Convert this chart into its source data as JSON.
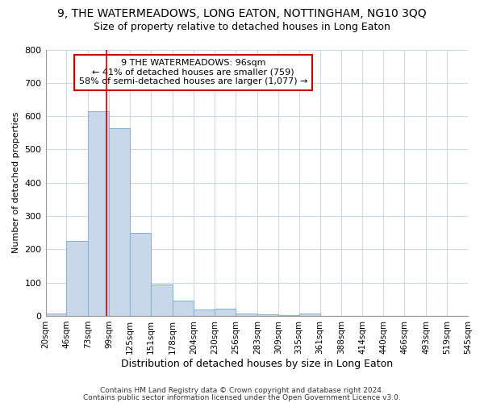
{
  "title": "9, THE WATERMEADOWS, LONG EATON, NOTTINGHAM, NG10 3QQ",
  "subtitle": "Size of property relative to detached houses in Long Eaton",
  "xlabel": "Distribution of detached houses by size in Long Eaton",
  "ylabel": "Number of detached properties",
  "bar_edges": [
    20,
    46,
    73,
    99,
    125,
    151,
    178,
    204,
    230,
    256,
    283,
    309,
    335,
    361,
    388,
    414,
    440,
    466,
    493,
    519,
    545
  ],
  "bar_heights": [
    8,
    225,
    615,
    565,
    250,
    95,
    45,
    20,
    22,
    8,
    5,
    2,
    8,
    0,
    0,
    0,
    0,
    0,
    0,
    0
  ],
  "bar_color": "#c8d8ea",
  "bar_edge_color": "#8ab4d4",
  "property_size": 96,
  "red_line_color": "#cc0000",
  "annotation_text": "9 THE WATERMEADOWS: 96sqm\n← 41% of detached houses are smaller (759)\n58% of semi-detached houses are larger (1,077) →",
  "annotation_box_color": "#ffffff",
  "annotation_box_edge": "#cc0000",
  "ylim": [
    0,
    800
  ],
  "yticks": [
    0,
    100,
    200,
    300,
    400,
    500,
    600,
    700,
    800
  ],
  "footer_line1": "Contains HM Land Registry data © Crown copyright and database right 2024.",
  "footer_line2": "Contains public sector information licensed under the Open Government Licence v3.0.",
  "background_color": "#ffffff",
  "grid_color": "#d0d8e4",
  "title_fontsize": 10,
  "subtitle_fontsize": 9,
  "tick_label_fontsize": 7.5
}
